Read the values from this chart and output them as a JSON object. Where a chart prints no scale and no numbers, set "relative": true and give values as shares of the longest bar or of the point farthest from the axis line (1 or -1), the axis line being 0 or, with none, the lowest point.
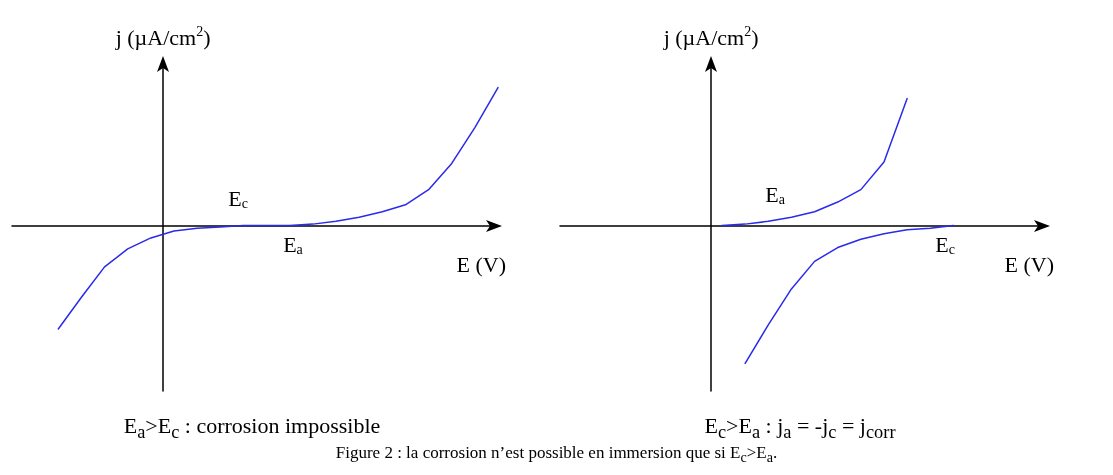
{
  "chart_data": [
    {
      "type": "line",
      "relative": true,
      "ylabel": "j (µA/cm$^{2}$)",
      "xlabel": "E (V)",
      "subtitle": "E$_{a}$>E$_{c}$ : corrosion impossible",
      "categories": [
        null,
        null,
        null,
        null,
        null,
        null,
        null,
        null,
        null,
        null,
        null,
        null,
        null,
        null,
        null,
        null,
        null,
        null,
        null,
        null,
        null,
        null
      ],
      "series": [
        {
          "color": "#2a2aea",
          "values": [
            null,
            null,
            -0.75,
            -0.52,
            -0.3,
            -0.17,
            -0.09,
            -0.04,
            -0.02,
            -0.01,
            0,
            0,
            0,
            0.01,
            0.03,
            0.06,
            0.1,
            0.15,
            0.26,
            0.45,
            0.71,
            1
          ]
        }
      ],
      "annotations": [
        "E$_{c}$",
        "E$_{a}$"
      ]
    },
    {
      "type": "line",
      "relative": true,
      "ylabel": "j (µA/cm$^{2}$)",
      "xlabel": "E (V)",
      "subtitle": "E$_{c}$>E$_{a}$ : j$_{a}$ = -j$_{c}$ = j$_{corr}$",
      "categories": [
        null,
        null,
        null,
        null,
        null,
        null,
        null,
        null,
        null,
        null,
        null,
        null,
        null,
        null,
        null,
        null,
        null,
        null,
        null,
        null,
        null,
        null
      ],
      "series": [
        {
          "color": "#2a2aea",
          "values": [
            null,
            null,
            null,
            null,
            null,
            null,
            null,
            0,
            0.01,
            0.03,
            0.06,
            0.1,
            0.17,
            0.26,
            0.46,
            0.92,
            null,
            null,
            null,
            null,
            null,
            null
          ]
        },
        {
          "color": "#2a2aea",
          "values": [
            null,
            null,
            null,
            null,
            null,
            null,
            null,
            null,
            -1,
            -0.72,
            -0.46,
            -0.26,
            -0.16,
            -0.1,
            -0.06,
            -0.03,
            -0.02,
            0,
            null,
            null,
            null,
            null
          ]
        }
      ],
      "annotations": [
        "E$_{a}$",
        "E$_{c}$",
        "Figure 2 : la corrosion n’est possible en immersion que si E$_{c}$>E$_{a}$."
      ]
    }
  ]
}
